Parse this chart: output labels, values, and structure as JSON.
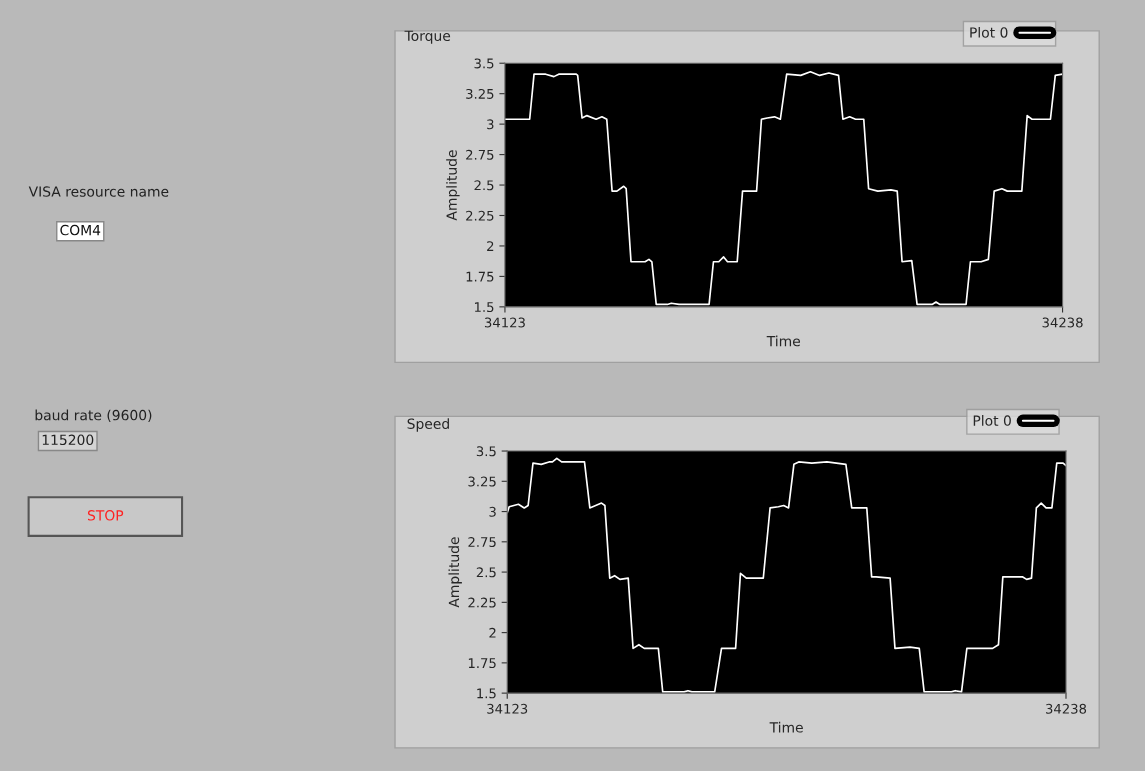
{
  "chart_data": [
    {
      "type": "other",
      "annotations": [
        "VISA resource name",
        "COM4",
        "baud rate (9600)",
        "115200",
        "STOP"
      ]
    },
    {
      "type": "line",
      "title": "Torque",
      "xlabel": "Time",
      "ylabel": "Amplitude",
      "xlim": [
        34123,
        34238
      ],
      "xticks": [
        34123,
        34238
      ],
      "ylim": [
        1.5,
        3.5
      ],
      "yticks": [
        1.5,
        1.75,
        2,
        2.25,
        2.5,
        2.75,
        3,
        3.25,
        3.5
      ],
      "grid": false,
      "legend": "top right",
      "series": [
        {
          "name": "Plot 0",
          "color": "#ffffff",
          "x": [
            34123.0,
            34127.5,
            34128.1,
            34129.0,
            34131.4,
            34133.1,
            34134.1,
            34137.7,
            34138.0,
            34138.9,
            34139.9,
            34141.8,
            34143.0,
            34144.0,
            34145.1,
            34146.1,
            34147.5,
            34148.0,
            34149.0,
            34151.9,
            34152.7,
            34153.3,
            34154.2,
            34156.5,
            34157.3,
            34158.9,
            34160.0,
            34165.1,
            34166.0,
            34167.1,
            34168.1,
            34168.9,
            34170.9,
            34172.0,
            34174.9,
            34175.9,
            34177.1,
            34178.6,
            34179.8,
            34181.1,
            34184.0,
            34186.0,
            34187.9,
            34189.8,
            34191.8,
            34192.7,
            34194.1,
            34195.3,
            34197.0,
            34198.0,
            34199.9,
            34202.6,
            34203.9,
            34204.9,
            34206.9,
            34208.0,
            34211.1,
            34211.9,
            34212.7,
            34216.9,
            34218.1,
            34219.0,
            34221.2,
            34222.7,
            34223.9,
            34225.5,
            34226.6,
            34229.6,
            34230.7,
            34231.7,
            34235.5,
            34236.5,
            34238.0
          ],
          "values": [
            3.04,
            3.04,
            3.04,
            3.41,
            3.41,
            3.39,
            3.41,
            3.41,
            3.4,
            3.05,
            3.07,
            3.04,
            3.06,
            3.04,
            2.45,
            2.45,
            2.49,
            2.47,
            1.87,
            1.87,
            1.89,
            1.87,
            1.52,
            1.52,
            1.53,
            1.52,
            1.52,
            1.52,
            1.87,
            1.87,
            1.91,
            1.87,
            1.87,
            2.45,
            2.45,
            3.04,
            3.05,
            3.06,
            3.04,
            3.41,
            3.4,
            3.43,
            3.4,
            3.42,
            3.4,
            3.04,
            3.06,
            3.04,
            3.04,
            2.47,
            2.45,
            2.46,
            2.45,
            1.87,
            1.88,
            1.52,
            1.52,
            1.54,
            1.52,
            1.52,
            1.52,
            1.87,
            1.87,
            1.89,
            2.45,
            2.47,
            2.45,
            2.45,
            3.07,
            3.04,
            3.04,
            3.4,
            3.41
          ]
        }
      ]
    },
    {
      "type": "line",
      "title": "Speed",
      "xlabel": "Time",
      "ylabel": "Amplitude",
      "xlim": [
        34123,
        34238
      ],
      "xticks": [
        34123,
        34238
      ],
      "ylim": [
        1.5,
        3.5
      ],
      "yticks": [
        1.5,
        1.75,
        2,
        2.25,
        2.5,
        2.75,
        3,
        3.25,
        3.5
      ],
      "grid": false,
      "legend": "top right",
      "series": [
        {
          "name": "Plot 0",
          "color": "#ffffff",
          "x": [
            34123.0,
            34123.4,
            34125.3,
            34126.5,
            34127.3,
            34128.3,
            34130.0,
            34131.6,
            34132.3,
            34133.2,
            34134.2,
            34138.9,
            34140.0,
            34142.4,
            34143.1,
            34144.1,
            34145.1,
            34146.2,
            34147.9,
            34148.9,
            34150.1,
            34151.2,
            34154.1,
            34155.0,
            34159.4,
            34160.2,
            34161.0,
            34165.7,
            34167.1,
            34170.0,
            34171.0,
            34172.2,
            34175.7,
            34177.1,
            34178.8,
            34179.9,
            34180.9,
            34182.0,
            34183.0,
            34185.7,
            34188.8,
            34192.7,
            34193.9,
            34197.0,
            34198.0,
            34198.9,
            34201.8,
            34202.8,
            34205.9,
            34207.8,
            34208.8,
            34214.4,
            34215.2,
            34216.5,
            34217.6,
            34219.8,
            34222.9,
            34224.1,
            34225.0,
            34228.3,
            34229.1,
            34229.9,
            34230.9,
            34231.9,
            34232.9,
            34233.9,
            34235.1,
            34236.1,
            34237.4,
            34238.0
          ],
          "values": [
            2.99,
            3.04,
            3.06,
            3.03,
            3.05,
            3.4,
            3.39,
            3.41,
            3.41,
            3.44,
            3.41,
            3.41,
            3.03,
            3.07,
            3.05,
            2.45,
            2.47,
            2.44,
            2.45,
            1.87,
            1.9,
            1.87,
            1.87,
            1.51,
            1.51,
            1.52,
            1.51,
            1.51,
            1.87,
            1.87,
            2.49,
            2.45,
            2.45,
            3.03,
            3.04,
            3.05,
            3.03,
            3.39,
            3.41,
            3.4,
            3.41,
            3.39,
            3.03,
            3.03,
            2.46,
            2.46,
            2.45,
            1.87,
            1.88,
            1.87,
            1.51,
            1.51,
            1.52,
            1.51,
            1.87,
            1.87,
            1.87,
            1.9,
            2.46,
            2.46,
            2.46,
            2.44,
            2.45,
            3.03,
            3.07,
            3.03,
            3.03,
            3.4,
            3.4,
            3.38
          ]
        }
      ]
    }
  ]
}
